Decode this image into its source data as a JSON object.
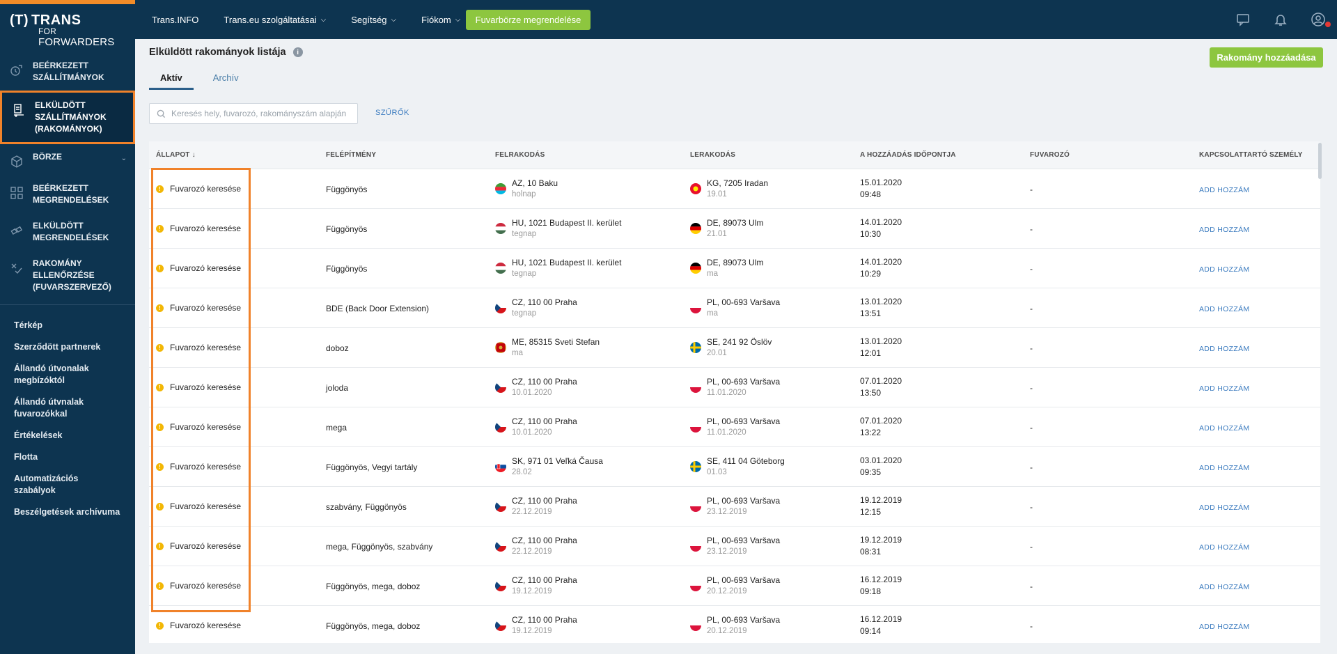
{
  "sidebar": {
    "logo": {
      "trans": "TRANS",
      "for": "FOR",
      "forwarders": "FORWARDERS"
    },
    "main_items": [
      {
        "label": "BEÉRKEZETT SZÁLLÍTMÁNYOK",
        "icon": "incoming-shipments-icon"
      },
      {
        "label": "ELKÜLDÖTT SZÁLLÍTMÁNYOK (RAKOMÁNYOK)",
        "icon": "sent-shipments-icon",
        "active": true
      },
      {
        "label": "BÖRZE",
        "icon": "box-icon"
      },
      {
        "label": "BEÉRKEZETT MEGRENDELÉSEK",
        "icon": "grid-icon"
      },
      {
        "label": "ELKÜLDÖTT MEGRENDELÉSEK",
        "icon": "exchange-icon"
      },
      {
        "label": "RAKOMÁNY ELLENŐRZÉSE (FUVARSZERVEZŐ)",
        "icon": "check-load-icon"
      }
    ],
    "secondary_items": [
      "Térkép",
      "Szerződött partnerek",
      "Állandó útvonalak megbízóktól",
      "Állandó útvnalak fuvarozókkal",
      "Értékelések",
      "Flotta",
      "Automatizációs szabályok",
      "Beszélgetések archívuma"
    ]
  },
  "topbar": {
    "menu": [
      "Trans.INFO",
      "Trans.eu szolgáltatásai",
      "Segítség",
      "Fiókom"
    ],
    "cta": "Fuvarbörze megrendelése",
    "icons": [
      "chat-icon",
      "bell-icon",
      "user-avatar-icon"
    ]
  },
  "page": {
    "title": "Elküldött rakományok listája",
    "add_button": "Rakomány hozzáadása",
    "tabs": [
      "Aktív",
      "Archív"
    ],
    "search_placeholder": "Keresés hely, fuvarozó, rakományszám alapján",
    "filter_label": "SZŰRŐK"
  },
  "table": {
    "headers": [
      "ÁLLAPOT ↓",
      "FELÉPÍTMÉNY",
      "FELRAKODÁS",
      "LERAKODÁS",
      "A HOZZÁADÁS IDŐPONTJA",
      "FUVAROZÓ",
      "KAPCSOLATTARTÓ SZEMÉLY"
    ],
    "rows": [
      {
        "status": "Fuvarozó keresése",
        "body": "Függönyös",
        "load": "AZ, 10 Baku",
        "load_date": "holnap",
        "load_flag": "AZ",
        "unload": "KG, 7205 Iradan",
        "unload_date": "19.01",
        "unload_flag": "KG",
        "added_date": "15.01.2020",
        "added_time": "09:48",
        "carrier": "-",
        "contact": "ADD HOZZÁM"
      },
      {
        "status": "Fuvarozó keresése",
        "body": "Függönyös",
        "load": "HU, 1021 Budapest II. kerület",
        "load_date": "tegnap",
        "load_flag": "HU",
        "unload": "DE, 89073 Ulm",
        "unload_date": "21.01",
        "unload_flag": "DE",
        "added_date": "14.01.2020",
        "added_time": "10:30",
        "carrier": "-",
        "contact": "ADD HOZZÁM"
      },
      {
        "status": "Fuvarozó keresése",
        "body": "Függönyös",
        "load": "HU, 1021 Budapest II. kerület",
        "load_date": "tegnap",
        "load_flag": "HU",
        "unload": "DE, 89073 Ulm",
        "unload_date": "ma",
        "unload_flag": "DE",
        "added_date": "14.01.2020",
        "added_time": "10:29",
        "carrier": "-",
        "contact": "ADD HOZZÁM"
      },
      {
        "status": "Fuvarozó keresése",
        "body": "BDE (Back Door Extension)",
        "load": "CZ, 110 00 Praha",
        "load_date": "tegnap",
        "load_flag": "CZ",
        "unload": "PL, 00-693 Varšava",
        "unload_date": "ma",
        "unload_flag": "PL",
        "added_date": "13.01.2020",
        "added_time": "13:51",
        "carrier": "-",
        "contact": "ADD HOZZÁM"
      },
      {
        "status": "Fuvarozó keresése",
        "body": "doboz",
        "load": "ME, 85315 Sveti Stefan",
        "load_date": "ma",
        "load_flag": "ME",
        "unload": "SE, 241 92 Öslöv",
        "unload_date": "20.01",
        "unload_flag": "SE",
        "added_date": "13.01.2020",
        "added_time": "12:01",
        "carrier": "-",
        "contact": "ADD HOZZÁM"
      },
      {
        "status": "Fuvarozó keresése",
        "body": "joloda",
        "load": "CZ, 110 00 Praha",
        "load_date": "10.01.2020",
        "load_flag": "CZ",
        "unload": "PL, 00-693 Varšava",
        "unload_date": "11.01.2020",
        "unload_flag": "PL",
        "added_date": "07.01.2020",
        "added_time": "13:50",
        "carrier": "-",
        "contact": "ADD HOZZÁM"
      },
      {
        "status": "Fuvarozó keresése",
        "body": "mega",
        "load": "CZ, 110 00 Praha",
        "load_date": "10.01.2020",
        "load_flag": "CZ",
        "unload": "PL, 00-693 Varšava",
        "unload_date": "11.01.2020",
        "unload_flag": "PL",
        "added_date": "07.01.2020",
        "added_time": "13:22",
        "carrier": "-",
        "contact": "ADD HOZZÁM"
      },
      {
        "status": "Fuvarozó keresése",
        "body": "Függönyös, Vegyi tartály",
        "load": "SK, 971 01 Veľká Čausa",
        "load_date": "28.02",
        "load_flag": "SK",
        "unload": "SE, 411 04 Göteborg",
        "unload_date": "01.03",
        "unload_flag": "SE",
        "added_date": "03.01.2020",
        "added_time": "09:35",
        "carrier": "-",
        "contact": "ADD HOZZÁM"
      },
      {
        "status": "Fuvarozó keresése",
        "body": "szabvány, Függönyös",
        "load": "CZ, 110 00 Praha",
        "load_date": "22.12.2019",
        "load_flag": "CZ",
        "unload": "PL, 00-693 Varšava",
        "unload_date": "23.12.2019",
        "unload_flag": "PL",
        "added_date": "19.12.2019",
        "added_time": "12:15",
        "carrier": "-",
        "contact": "ADD HOZZÁM"
      },
      {
        "status": "Fuvarozó keresése",
        "body": "mega, Függönyös, szabvány",
        "load": "CZ, 110 00 Praha",
        "load_date": "22.12.2019",
        "load_flag": "CZ",
        "unload": "PL, 00-693 Varšava",
        "unload_date": "23.12.2019",
        "unload_flag": "PL",
        "added_date": "19.12.2019",
        "added_time": "08:31",
        "carrier": "-",
        "contact": "ADD HOZZÁM"
      },
      {
        "status": "Fuvarozó keresése",
        "body": "Függönyös, mega, doboz",
        "load": "CZ, 110 00 Praha",
        "load_date": "19.12.2019",
        "load_flag": "CZ",
        "unload": "PL, 00-693 Varšava",
        "unload_date": "20.12.2019",
        "unload_flag": "PL",
        "added_date": "16.12.2019",
        "added_time": "09:18",
        "carrier": "-",
        "contact": "ADD HOZZÁM"
      },
      {
        "status": "Fuvarozó keresése",
        "body": "Függönyös, mega, doboz",
        "load": "CZ, 110 00 Praha",
        "load_date": "19.12.2019",
        "load_flag": "CZ",
        "unload": "PL, 00-693 Varšava",
        "unload_date": "20.12.2019",
        "unload_flag": "PL",
        "added_date": "16.12.2019",
        "added_time": "09:14",
        "carrier": "-",
        "contact": "ADD HOZZÁM"
      }
    ]
  },
  "colors": {
    "sidebar_bg": "#0d3450",
    "accent_green": "#8dc63f",
    "highlight_orange": "#f0822a",
    "link_blue": "#3b7bbf",
    "warning_yellow": "#f2b705"
  }
}
